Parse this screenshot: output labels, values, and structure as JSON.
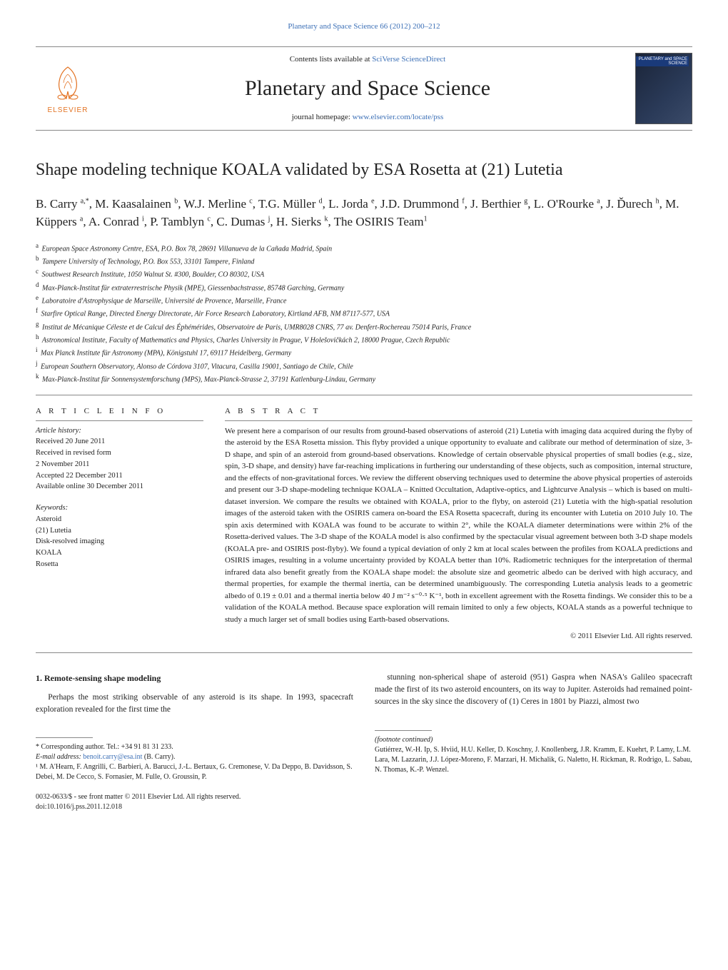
{
  "journal_ref": "Planetary and Space Science 66 (2012) 200–212",
  "masthead": {
    "contents_prefix": "Contents lists available at ",
    "contents_link": "SciVerse ScienceDirect",
    "journal_title": "Planetary and Space Science",
    "homepage_prefix": "journal homepage: ",
    "homepage_link": "www.elsevier.com/locate/pss",
    "elsevier_label": "ELSEVIER",
    "cover_label": "PLANETARY and SPACE SCIENCE"
  },
  "title": "Shape modeling technique KOALA validated by ESA Rosetta at (21) Lutetia",
  "authors_html": "B. Carry <sup>a,*</sup>, M. Kaasalainen <sup>b</sup>, W.J. Merline <sup>c</sup>, T.G. Müller <sup>d</sup>, L. Jorda <sup>e</sup>, J.D. Drummond <sup>f</sup>, J. Berthier <sup>g</sup>, L. O'Rourke <sup>a</sup>, J. Ďurech <sup>h</sup>, M. Küppers <sup>a</sup>, A. Conrad <sup>i</sup>, P. Tamblyn <sup>c</sup>, C. Dumas <sup>j</sup>, H. Sierks <sup>k</sup>, The OSIRIS Team<sup>1</sup>",
  "affiliations": [
    {
      "key": "a",
      "text": "European Space Astronomy Centre, ESA, P.O. Box 78, 28691 Villanueva de la Cañada Madrid, Spain"
    },
    {
      "key": "b",
      "text": "Tampere University of Technology, P.O. Box 553, 33101 Tampere, Finland"
    },
    {
      "key": "c",
      "text": "Southwest Research Institute, 1050 Walnut St. #300, Boulder, CO 80302, USA"
    },
    {
      "key": "d",
      "text": "Max-Planck-Institut für extraterrestrische Physik (MPE), Giessenbachstrasse, 85748 Garching, Germany"
    },
    {
      "key": "e",
      "text": "Laboratoire d'Astrophysique de Marseille, Université de Provence, Marseille, France"
    },
    {
      "key": "f",
      "text": "Starfire Optical Range, Directed Energy Directorate, Air Force Research Laboratory, Kirtland AFB, NM 87117-577, USA"
    },
    {
      "key": "g",
      "text": "Institut de Mécanique Céleste et de Calcul des Éphémérides, Observatoire de Paris, UMR8028 CNRS, 77 av. Denfert-Rochereau 75014 Paris, France"
    },
    {
      "key": "h",
      "text": "Astronomical Institute, Faculty of Mathematics and Physics, Charles University in Prague, V Holešovičkách 2, 18000 Prague, Czech Republic"
    },
    {
      "key": "i",
      "text": "Max Planck Institute für Astronomy (MPA), Königstuhl 17, 69117 Heidelberg, Germany"
    },
    {
      "key": "j",
      "text": "European Southern Observatory, Alonso de Córdova 3107, Vitacura, Casilla 19001, Santiago de Chile, Chile"
    },
    {
      "key": "k",
      "text": "Max-Planck-Institut für Sonnensystemforschung (MPS), Max-Planck-Strasse 2, 37191 Katlenburg-Lindau, Germany"
    }
  ],
  "article_info": {
    "heading": "A R T I C L E   I N F O",
    "history_label": "Article history:",
    "history": [
      "Received 20 June 2011",
      "Received in revised form",
      "2 November 2011",
      "Accepted 22 December 2011",
      "Available online 30 December 2011"
    ],
    "kw_label": "Keywords:",
    "keywords": [
      "Asteroid",
      "(21) Lutetia",
      "Disk-resolved imaging",
      "KOALA",
      "Rosetta"
    ]
  },
  "abstract": {
    "heading": "A B S T R A C T",
    "text": "We present here a comparison of our results from ground-based observations of asteroid (21) Lutetia with imaging data acquired during the flyby of the asteroid by the ESA Rosetta mission. This flyby provided a unique opportunity to evaluate and calibrate our method of determination of size, 3-D shape, and spin of an asteroid from ground-based observations. Knowledge of certain observable physical properties of small bodies (e.g., size, spin, 3-D shape, and density) have far-reaching implications in furthering our understanding of these objects, such as composition, internal structure, and the effects of non-gravitational forces. We review the different observing techniques used to determine the above physical properties of asteroids and present our 3-D shape-modeling technique KOALA – Knitted Occultation, Adaptive-optics, and Lightcurve Analysis – which is based on multi-dataset inversion. We compare the results we obtained with KOALA, prior to the flyby, on asteroid (21) Lutetia with the high-spatial resolution images of the asteroid taken with the OSIRIS camera on-board the ESA Rosetta spacecraft, during its encounter with Lutetia on 2010 July 10. The spin axis determined with KOALA was found to be accurate to within 2°, while the KOALA diameter determinations were within 2% of the Rosetta-derived values. The 3-D shape of the KOALA model is also confirmed by the spectacular visual agreement between both 3-D shape models (KOALA pre- and OSIRIS post-flyby). We found a typical deviation of only 2 km at local scales between the profiles from KOALA predictions and OSIRIS images, resulting in a volume uncertainty provided by KOALA better than 10%. Radiometric techniques for the interpretation of thermal infrared data also benefit greatly from the KOALA shape model: the absolute size and geometric albedo can be derived with high accuracy, and thermal properties, for example the thermal inertia, can be determined unambiguously. The corresponding Lutetia analysis leads to a geometric albedo of 0.19 ± 0.01 and a thermal inertia below 40 J m⁻² s⁻⁰·⁵ K⁻¹, both in excellent agreement with the Rosetta findings. We consider this to be a validation of the KOALA method. Because space exploration will remain limited to only a few objects, KOALA stands as a powerful technique to study a much larger set of small bodies using Earth-based observations.",
    "copyright": "© 2011 Elsevier Ltd. All rights reserved."
  },
  "section1": {
    "heading": "1. Remote-sensing shape modeling",
    "para_left": "Perhaps the most striking observable of any asteroid is its shape. In 1993, spacecraft exploration revealed for the first time the",
    "para_right": "stunning non-spherical shape of asteroid (951) Gaspra when NASA's Galileo spacecraft made the first of its two asteroid encounters, on its way to Jupiter. Asteroids had remained point-sources in the sky since the discovery of (1) Ceres in 1801 by Piazzi, almost two"
  },
  "footnotes_left": {
    "corresponding": "* Corresponding author. Tel.: +34 91 81 31 233.",
    "email_label": "E-mail address: ",
    "email": "benoit.carry@esa.int",
    "email_suffix": " (B. Carry).",
    "team1": "¹ M. A'Hearn, F. Angrilli, C. Barbieri, A. Barucci, J.-L. Bertaux, G. Cremonese, V. Da Deppo, B. Davidsson, S. Debei, M. De Cecco, S. Fornasier, M. Fulle, O. Groussin, P."
  },
  "footnotes_right": {
    "continued_label": "(footnote continued)",
    "team2": "Gutiérrez, W.-H. Ip, S. Hviid, H.U. Keller, D. Koschny, J. Knollenberg, J.R. Kramm, E. Kuehrt, P. Lamy, L.M. Lara, M. Lazzarin, J.J. López-Moreno, F. Marzari, H. Michalik, G. Naletto, H. Rickman, R. Rodrigo, L. Sabau, N. Thomas, K.-P. Wenzel."
  },
  "doi_block": {
    "line1": "0032-0633/$ - see front matter © 2011 Elsevier Ltd. All rights reserved.",
    "line2": "doi:10.1016/j.pss.2011.12.018"
  },
  "colors": {
    "link": "#3b6fb6",
    "elsevier_orange": "#e37222",
    "rule": "#888888"
  }
}
